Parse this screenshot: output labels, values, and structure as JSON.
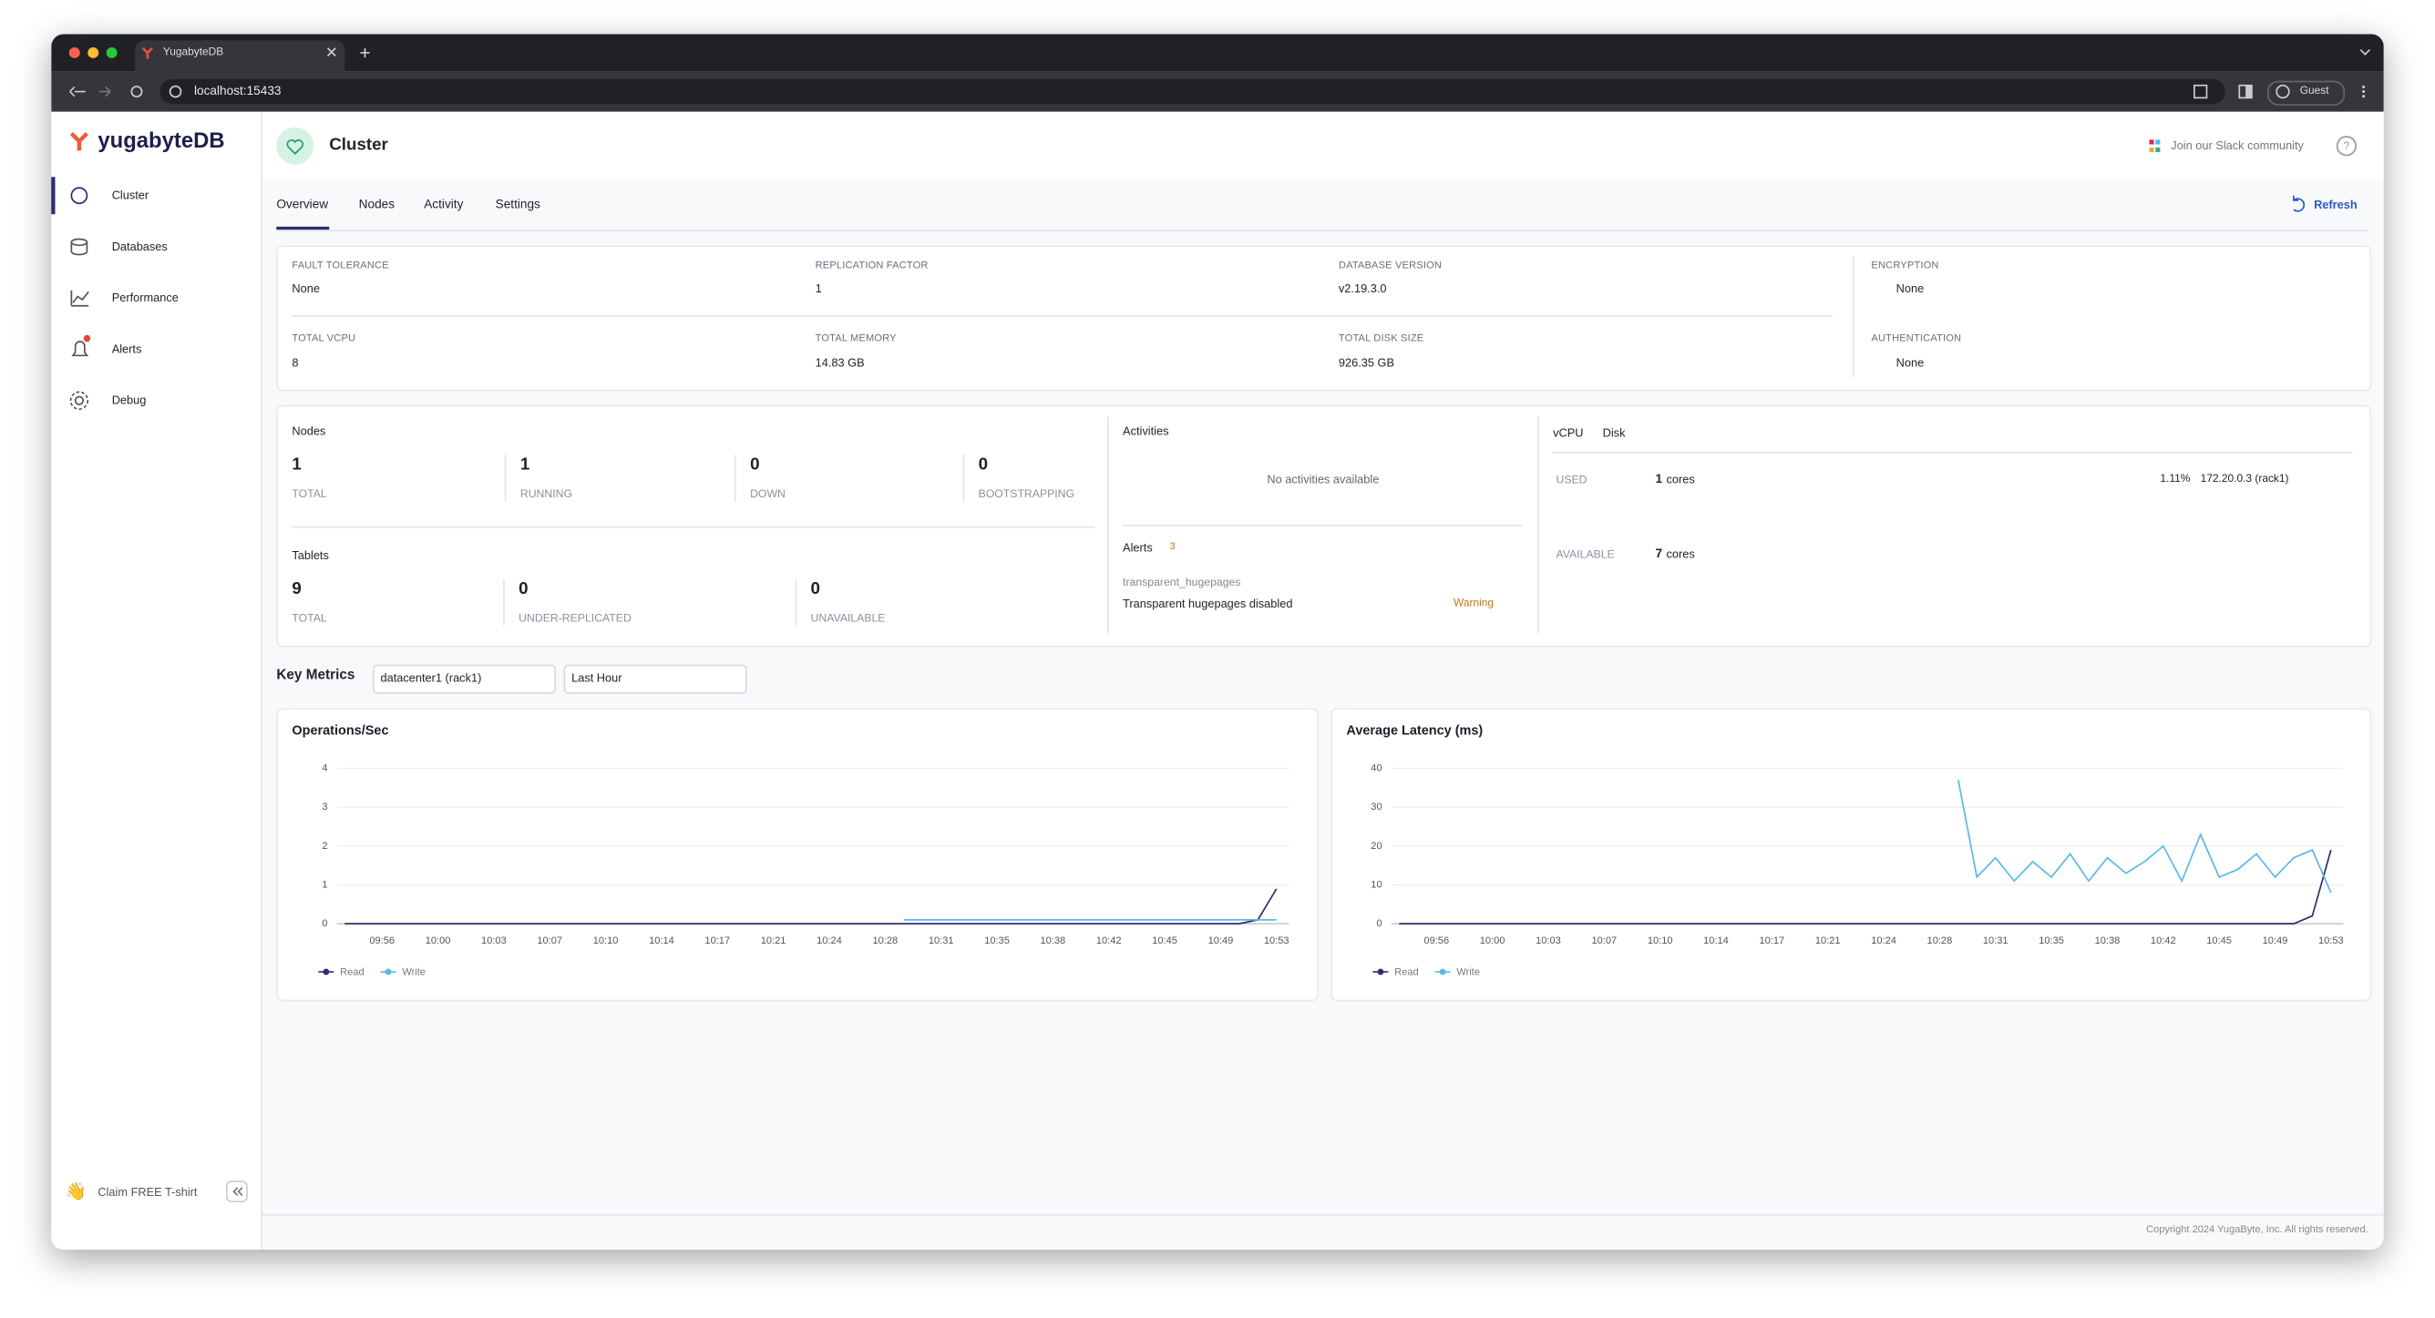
{
  "browser": {
    "tab": "YugabyteDB",
    "url": "localhost:15433",
    "profile": "Guest"
  },
  "sidebar": {
    "logo": "yugabyteDB",
    "nav": [
      "Cluster",
      "Databases",
      "Performance",
      "Alerts",
      "Debug"
    ],
    "promo": "Claim FREE T-shirt"
  },
  "header": {
    "title": "Cluster",
    "community": "Join our Slack community"
  },
  "tabs": [
    "Overview",
    "Nodes",
    "Activity",
    "Settings"
  ],
  "refresh": "Refresh",
  "info": [
    {
      "label": "FAULT TOLERANCE",
      "value": "None"
    },
    {
      "label": "REPLICATION FACTOR",
      "value": "1"
    },
    {
      "label": "DATABASE VERSION",
      "value": "v2.19.3.0"
    },
    {
      "label": "ENCRYPTION",
      "value": "None"
    },
    {
      "label": "TOTAL VCPU",
      "value": "8"
    },
    {
      "label": "TOTAL MEMORY",
      "value": "14.83 GB"
    },
    {
      "label": "TOTAL DISK SIZE",
      "value": "926.35 GB"
    },
    {
      "label": "AUTHENTICATION",
      "value": "None"
    }
  ],
  "nodes": {
    "title": "Nodes",
    "stats": [
      {
        "value": "1",
        "label": "TOTAL"
      },
      {
        "value": "1",
        "label": "RUNNING"
      },
      {
        "value": "0",
        "label": "DOWN"
      },
      {
        "value": "0",
        "label": "BOOTSTRAPPING"
      }
    ]
  },
  "tablets": {
    "title": "Tablets",
    "stats": [
      {
        "value": "9",
        "label": "TOTAL"
      },
      {
        "value": "0",
        "label": "UNDER-REPLICATED"
      },
      {
        "value": "0",
        "label": "UNAVAILABLE"
      }
    ]
  },
  "activities": {
    "title": "Activities",
    "empty": "No activities available"
  },
  "alerts": {
    "title": "Alerts",
    "count": "3",
    "name": "transparent_hugepages",
    "message": "Transparent hugepages disabled",
    "severity": "Warning"
  },
  "resources": {
    "tabs": [
      "vCPU",
      "Disk"
    ],
    "used": {
      "label": "USED",
      "value": "1",
      "unit": "cores",
      "percent": "1.11%",
      "node": "172.20.0.3 (rack1)"
    },
    "available": {
      "label": "AVAILABLE",
      "value": "7",
      "unit": "cores"
    }
  },
  "key_metrics": {
    "title": "Key Metrics",
    "region": "datacenter1 (rack1)",
    "range": "Last Hour"
  },
  "chart_data": [
    {
      "type": "line",
      "title": "Operations/Sec",
      "grid": true,
      "categories": [
        null,
        null,
        "09:56",
        null,
        null,
        "10:00",
        null,
        null,
        "10:03",
        null,
        null,
        "10:07",
        null,
        null,
        "10:10",
        null,
        null,
        "10:14",
        null,
        null,
        "10:17",
        null,
        null,
        "10:21",
        null,
        null,
        "10:24",
        null,
        null,
        "10:28",
        null,
        null,
        "10:31",
        null,
        null,
        "10:35",
        null,
        null,
        "10:38",
        null,
        null,
        "10:42",
        null,
        null,
        "10:45",
        null,
        null,
        "10:49",
        null,
        null,
        "10:53"
      ],
      "ylim": [
        0,
        4
      ],
      "yticks": [
        0,
        1,
        2,
        3,
        4
      ],
      "series": [
        {
          "name": "Read",
          "color": "#2d2f6b",
          "values": [
            0,
            0,
            0,
            0,
            0,
            0,
            0,
            0,
            0,
            0,
            0,
            0,
            0,
            0,
            0,
            0,
            0,
            0,
            0,
            0,
            0,
            0,
            0,
            0,
            0,
            0,
            0,
            0,
            0,
            0,
            0,
            0,
            0,
            0,
            0,
            0,
            0,
            0,
            0,
            0,
            0,
            0,
            0,
            0,
            0,
            0,
            0,
            0,
            0,
            0.1,
            0.9
          ]
        },
        {
          "name": "Write",
          "color": "#5bb8e6",
          "values": [
            null,
            null,
            null,
            null,
            null,
            null,
            null,
            null,
            null,
            null,
            null,
            null,
            null,
            null,
            null,
            null,
            null,
            null,
            null,
            null,
            null,
            null,
            null,
            null,
            null,
            null,
            null,
            null,
            null,
            null,
            0.1,
            0.1,
            0.1,
            0.1,
            0.1,
            0.1,
            0.1,
            0.1,
            0.1,
            0.1,
            0.1,
            0.1,
            0.1,
            0.1,
            0.1,
            0.1,
            0.1,
            0.1,
            0.1,
            0.1,
            0.1
          ]
        }
      ]
    },
    {
      "type": "line",
      "title": "Average Latency (ms)",
      "grid": true,
      "categories": [
        null,
        null,
        "09:56",
        null,
        null,
        "10:00",
        null,
        null,
        "10:03",
        null,
        null,
        "10:07",
        null,
        null,
        "10:10",
        null,
        null,
        "10:14",
        null,
        null,
        "10:17",
        null,
        null,
        "10:21",
        null,
        null,
        "10:24",
        null,
        null,
        "10:28",
        null,
        null,
        "10:31",
        null,
        null,
        "10:35",
        null,
        null,
        "10:38",
        null,
        null,
        "10:42",
        null,
        null,
        "10:45",
        null,
        null,
        "10:49",
        null,
        null,
        "10:53"
      ],
      "ylim": [
        0,
        40
      ],
      "yticks": [
        0,
        10,
        20,
        30,
        40
      ],
      "series": [
        {
          "name": "Read",
          "color": "#2d2f6b",
          "values": [
            0,
            0,
            0,
            0,
            0,
            0,
            0,
            0,
            0,
            0,
            0,
            0,
            0,
            0,
            0,
            0,
            0,
            0,
            0,
            0,
            0,
            0,
            0,
            0,
            0,
            0,
            0,
            0,
            0,
            0,
            0,
            0,
            0,
            0,
            0,
            0,
            0,
            0,
            0,
            0,
            0,
            0,
            0,
            0,
            0,
            0,
            0,
            0,
            0,
            2,
            19
          ]
        },
        {
          "name": "Write",
          "color": "#5bb8e6",
          "values": [
            null,
            null,
            null,
            null,
            null,
            null,
            null,
            null,
            null,
            null,
            null,
            null,
            null,
            null,
            null,
            null,
            null,
            null,
            null,
            null,
            null,
            null,
            null,
            null,
            null,
            null,
            null,
            null,
            null,
            null,
            37,
            12,
            17,
            11,
            16,
            12,
            18,
            11,
            17,
            13,
            16,
            20,
            11,
            23,
            12,
            14,
            18,
            12,
            17,
            19,
            8
          ]
        }
      ]
    }
  ],
  "footer": "Copyright 2024 YugaByte, Inc. All rights reserved."
}
